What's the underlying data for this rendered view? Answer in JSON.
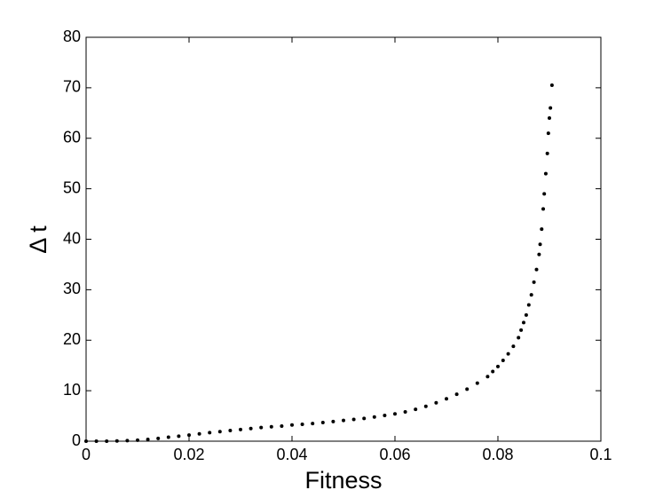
{
  "chart_data": {
    "type": "scatter",
    "xlabel": "Fitness",
    "ylabel": "Δ t",
    "x": [
      0,
      0.002,
      0.004,
      0.006,
      0.008,
      0.01,
      0.012,
      0.014,
      0.016,
      0.018,
      0.02,
      0.022,
      0.024,
      0.026,
      0.028,
      0.03,
      0.032,
      0.034,
      0.036,
      0.038,
      0.04,
      0.042,
      0.044,
      0.046,
      0.048,
      0.05,
      0.052,
      0.054,
      0.056,
      0.058,
      0.06,
      0.062,
      0.064,
      0.066,
      0.068,
      0.07,
      0.072,
      0.074,
      0.076,
      0.078,
      0.079,
      0.08,
      0.081,
      0.082,
      0.083,
      0.084,
      0.0845,
      0.085,
      0.0855,
      0.086,
      0.0865,
      0.087,
      0.0875,
      0.088,
      0.0882,
      0.0885,
      0.0888,
      0.089,
      0.0893,
      0.0896,
      0.0898,
      0.09,
      0.0902,
      0.0905
    ],
    "values": [
      0,
      0,
      0,
      0.05,
      0.1,
      0.2,
      0.35,
      0.55,
      0.8,
      1.0,
      1.2,
      1.45,
      1.7,
      1.9,
      2.1,
      2.3,
      2.5,
      2.7,
      2.85,
      3.0,
      3.2,
      3.35,
      3.5,
      3.7,
      3.9,
      4.1,
      4.3,
      4.5,
      4.8,
      5.1,
      5.4,
      5.8,
      6.3,
      6.9,
      7.6,
      8.4,
      9.3,
      10.3,
      11.5,
      12.8,
      13.8,
      14.8,
      16,
      17.3,
      18.8,
      20.5,
      22,
      23.5,
      25,
      27,
      29,
      31.5,
      34,
      37,
      39,
      42,
      46,
      49,
      53,
      57,
      61,
      64,
      66,
      70.5
    ],
    "color": "#000000",
    "xlim": [
      0,
      0.1
    ],
    "xticks": [
      0,
      0.02,
      0.04,
      0.06,
      0.08,
      0.1
    ],
    "ylim": [
      0,
      80
    ],
    "yticks": [
      0,
      10,
      20,
      30,
      40,
      50,
      60,
      70,
      80
    ]
  }
}
